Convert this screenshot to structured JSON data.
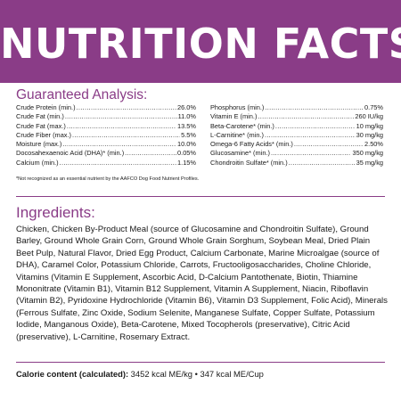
{
  "header": {
    "title": "NUTRITION FACTS"
  },
  "guaranteed_analysis": {
    "heading": "Guaranteed Analysis:",
    "left": [
      {
        "label": "Crude Protein (min.)",
        "value": "26.0%"
      },
      {
        "label": "Crude Fat (min.)",
        "value": "11.0%"
      },
      {
        "label": "Crude Fat (max.)",
        "value": "13.5%"
      },
      {
        "label": "Crude Fiber (max.)",
        "value": "5.5%"
      },
      {
        "label": "Moisture (max.)",
        "value": "10.0%"
      },
      {
        "label": "Docosahexaenoic Acid (DHA)* (min.)",
        "value": "0.05%"
      },
      {
        "label": "Calcium (min.)",
        "value": "1.15%"
      }
    ],
    "right": [
      {
        "label": "Phosphorus (min.)",
        "value": "0.75%"
      },
      {
        "label": "Vitamin E (min.)",
        "value": "260 IU/kg"
      },
      {
        "label": "Beta-Carotene* (min.)",
        "value": "10 mg/kg"
      },
      {
        "label": "L-Carnitine* (min.)",
        "value": "30 mg/kg"
      },
      {
        "label": "Omega-6 Fatty Acids* (min.)",
        "value": "2.50%"
      },
      {
        "label": "Glucosamine* (min.)",
        "value": "350 mg/kg"
      },
      {
        "label": "Chondroitin Sulfate* (min.)",
        "value": "35 mg/kg"
      }
    ],
    "footnote": "*Not recognized as an essential nutrient by the AAFCO Dog Food Nutrient Profiles."
  },
  "ingredients": {
    "heading": "Ingredients:",
    "text": "Chicken, Chicken By-Product Meal (source of Glucosamine and Chondroitin Sulfate), Ground Barley, Ground Whole Grain Corn, Ground Whole Grain Sorghum, Soybean Meal, Dried Plain Beet Pulp, Natural Flavor, Dried Egg Product, Calcium Carbonate, Marine Microalgae (source of DHA), Caramel Color, Potassium Chloride, Carrots, Fructooligosaccharides, Choline Chloride, Vitamins (Vitamin E Supplement, Ascorbic Acid, D-Calcium Pantothenate, Biotin, Thiamine Mononitrate (Vitamin B1), Vitamin B12 Supplement, Vitamin A Supplement, Niacin, Riboflavin (Vitamin B2), Pyridoxine Hydrochloride (Vitamin B6), Vitamin D3 Supplement, Folic Acid), Minerals (Ferrous Sulfate, Zinc Oxide, Sodium Selenite, Manganese Sulfate, Copper Sulfate, Potassium Iodide, Manganous Oxide), Beta-Carotene, Mixed Tocopherols (preservative), Citric Acid (preservative), L-Carnitine, Rosemary Extract."
  },
  "calorie": {
    "label": "Calorie content (calculated):",
    "value": " 3452 kcal ME/kg • 347 kcal ME/Cup"
  },
  "colors": {
    "accent": "#8a3c87"
  }
}
